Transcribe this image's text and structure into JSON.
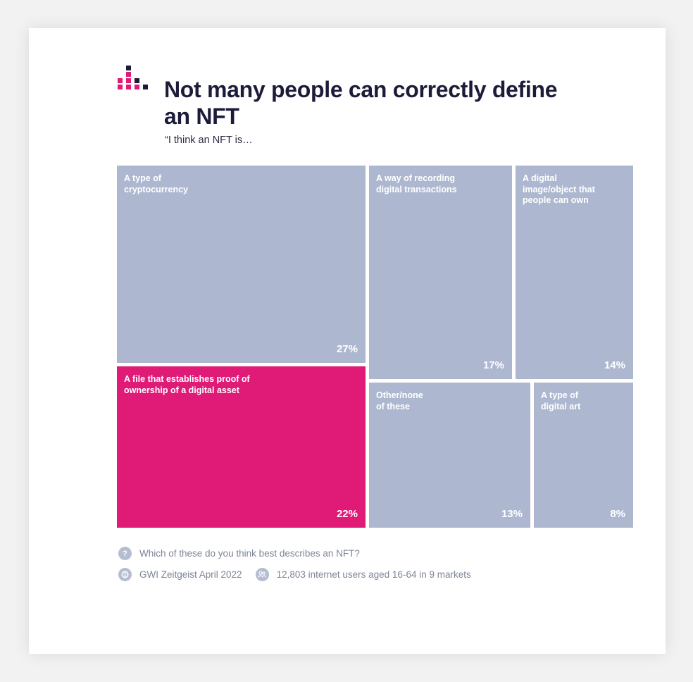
{
  "title": "Not many people can correctly define an NFT",
  "subtitle": "“I think an NFT is…",
  "colors": {
    "highlight": "#e01b77",
    "default": "#adb8d0",
    "text": "#1c1c3a",
    "muted": "#7d8596"
  },
  "chart_data": {
    "type": "treemap",
    "title": "Not many people can correctly define an NFT",
    "subtitle": "“I think an NFT is…",
    "items": [
      {
        "label": "A type of\ncryptocurrency",
        "value": 27,
        "display": "27%"
      },
      {
        "label": "A file that establishes proof of\nownership of a digital asset",
        "value": 22,
        "display": "22%",
        "highlight": true
      },
      {
        "label": "A way of recording\ndigital transactions",
        "value": 17,
        "display": "17%"
      },
      {
        "label": "A digital\nimage/object that\npeople can own",
        "value": 14,
        "display": "14%"
      },
      {
        "label": "Other/none\nof these",
        "value": 13,
        "display": "13%"
      },
      {
        "label": "A type of\ndigital art",
        "value": 8,
        "display": "8%"
      }
    ]
  },
  "footer": {
    "question_icon": "question-mark-icon",
    "question": "Which of these do you think best describes an NFT?",
    "source_icon": "gwi-logo-icon",
    "source": "GWI Zeitgeist April 2022",
    "sample_icon": "people-icon",
    "sample": "12,803 internet users aged 16-64 in 9 markets"
  }
}
